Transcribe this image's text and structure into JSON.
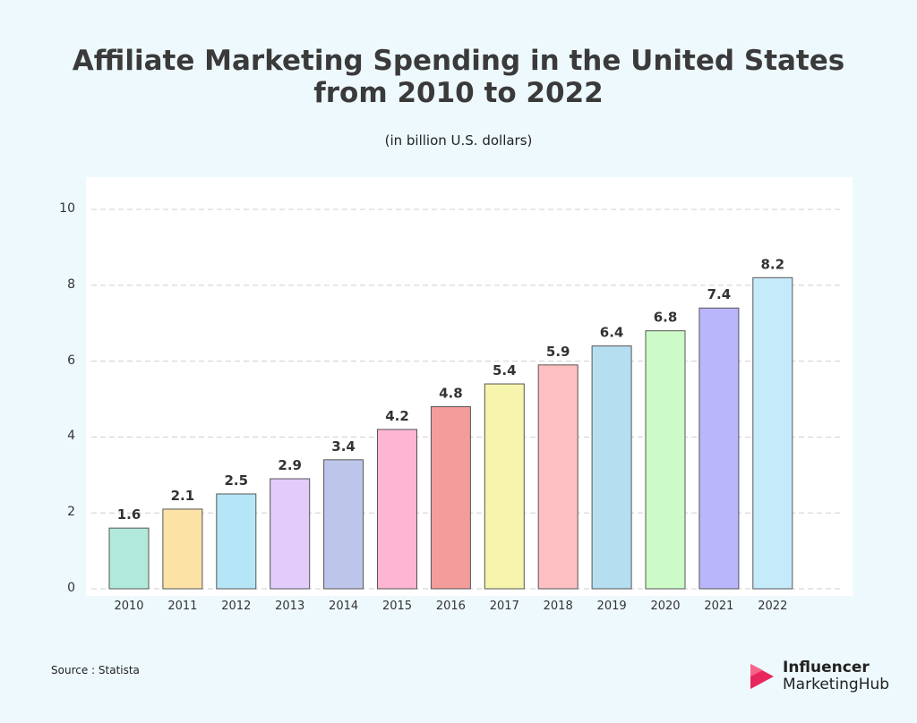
{
  "title_line1": "Affiliate Marketing Spending in the United States",
  "title_line2": "from 2010 to 2022",
  "subtitle": "(in billion U.S. dollars)",
  "source": "Source : Statista",
  "brand": {
    "line1": "Influencer",
    "line2": "MarketingHub",
    "accent": "#e8265e"
  },
  "chart_data": {
    "type": "bar",
    "categories": [
      "2010",
      "2011",
      "2012",
      "2013",
      "2014",
      "2015",
      "2016",
      "2017",
      "2018",
      "2019",
      "2020",
      "2021",
      "2022"
    ],
    "values": [
      1.6,
      2.1,
      2.5,
      2.9,
      3.4,
      4.2,
      4.8,
      5.4,
      5.9,
      6.4,
      6.8,
      7.4,
      8.2
    ],
    "labels": [
      "1.6",
      "2.1",
      "2.5",
      "2.9",
      "3.4",
      "4.2",
      "4.8",
      "5.4",
      "5.9",
      "6.4",
      "6.8",
      "7.4",
      "8.2"
    ],
    "colors": [
      "#b1eada",
      "#fde2a6",
      "#b5e6f7",
      "#e2ccfc",
      "#bdc6ea",
      "#fdb5d2",
      "#f49b9b",
      "#f7f5ad",
      "#fdbfc1",
      "#b5def0",
      "#cdfbc8",
      "#b9b6fb",
      "#c5ebfb"
    ],
    "yticks": [
      0,
      2,
      4,
      6,
      8,
      10
    ],
    "ylim": [
      0,
      10
    ],
    "grid": true,
    "xlabel": "",
    "ylabel": ""
  }
}
